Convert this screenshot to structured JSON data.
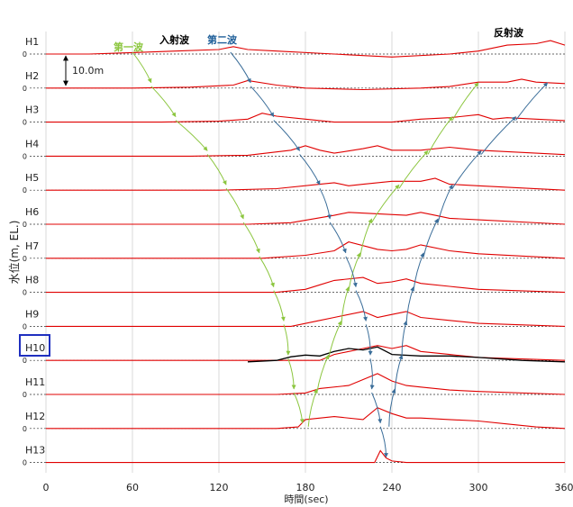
{
  "chart_data": {
    "type": "line",
    "xlabel": "時間(sec)",
    "ylabel": "水位(m, EL.)",
    "x_ticks": [
      0,
      60,
      120,
      180,
      240,
      300,
      360
    ],
    "xlim": [
      0,
      360
    ],
    "scale_label": "10.0m",
    "zero_label": "0",
    "highlighted_station": "H10",
    "grid": "vertical",
    "annotations": {
      "first_wave": "第一波",
      "incident_wave": "入射波",
      "second_wave": "第二波",
      "reflected_wave": "反射波"
    },
    "colors": {
      "series": "#e00000",
      "highlight_series": "#000000",
      "first_wave_arrow": "#8cc63f",
      "second_wave_arrow": "#3a6d99",
      "reflected_arrow": "#3a6d99",
      "highlight_box": "#1f2fbf",
      "second_wave_text": "#1f5f99"
    },
    "series": [
      {
        "name": "H1",
        "x": [
          0,
          30,
          60,
          90,
          120,
          130,
          140,
          160,
          200,
          240,
          280,
          300,
          320,
          340,
          350,
          360
        ],
        "y": [
          0,
          0,
          0.5,
          1,
          1.5,
          2.5,
          1.5,
          1,
          0,
          -1,
          0,
          1,
          3,
          3.5,
          4.5,
          3
        ]
      },
      {
        "name": "H2",
        "x": [
          0,
          60,
          100,
          130,
          140,
          160,
          180,
          220,
          260,
          280,
          300,
          320,
          330,
          340,
          360
        ],
        "y": [
          0,
          0,
          0.3,
          1,
          2.5,
          1,
          0,
          -0.5,
          0,
          0.5,
          2,
          2,
          3,
          2,
          1.5
        ]
      },
      {
        "name": "H3",
        "x": [
          0,
          80,
          120,
          140,
          150,
          160,
          180,
          200,
          240,
          260,
          280,
          300,
          310,
          320,
          360
        ],
        "y": [
          0,
          0,
          0.3,
          1,
          3,
          2,
          1,
          0,
          0,
          1,
          1.5,
          2.5,
          1,
          1.5,
          0.5
        ]
      },
      {
        "name": "H4",
        "x": [
          0,
          100,
          140,
          170,
          180,
          190,
          200,
          220,
          230,
          240,
          260,
          280,
          300,
          360
        ],
        "y": [
          0,
          0,
          0.3,
          2,
          3.5,
          2,
          1,
          2.5,
          3.5,
          2,
          2,
          3,
          2,
          0.5
        ]
      },
      {
        "name": "H5",
        "x": [
          0,
          120,
          160,
          190,
          200,
          210,
          220,
          240,
          260,
          270,
          280,
          300,
          360
        ],
        "y": [
          0,
          0,
          0.5,
          2,
          2.5,
          1.5,
          2,
          3,
          3,
          4,
          2,
          1.5,
          0
        ]
      },
      {
        "name": "H6",
        "x": [
          0,
          140,
          170,
          200,
          210,
          230,
          250,
          260,
          270,
          280,
          300,
          360
        ],
        "y": [
          0,
          0,
          0.5,
          3,
          4,
          3.5,
          3,
          4,
          3,
          2,
          1.5,
          0
        ]
      },
      {
        "name": "H7",
        "x": [
          0,
          150,
          180,
          200,
          210,
          230,
          240,
          250,
          260,
          280,
          300,
          360
        ],
        "y": [
          0,
          0,
          1,
          2.5,
          5.5,
          3,
          2.5,
          3,
          4.5,
          2.5,
          1.5,
          0
        ]
      },
      {
        "name": "H8",
        "x": [
          0,
          160,
          180,
          190,
          200,
          220,
          230,
          240,
          250,
          260,
          280,
          300,
          360
        ],
        "y": [
          0,
          0,
          1,
          2.5,
          4,
          5,
          3,
          3.5,
          4.5,
          3,
          2,
          1,
          0
        ]
      },
      {
        "name": "H9",
        "x": [
          0,
          170,
          190,
          200,
          220,
          230,
          240,
          250,
          260,
          280,
          300,
          360
        ],
        "y": [
          0,
          0,
          2,
          3,
          5,
          3,
          4,
          5,
          3,
          2,
          1,
          0
        ]
      },
      {
        "name": "H10",
        "x": [
          0,
          190,
          200,
          210,
          220,
          230,
          240,
          250,
          260,
          280,
          300,
          360
        ],
        "y": [
          0,
          0,
          2,
          3,
          4,
          5,
          4,
          5,
          3,
          2,
          1,
          0
        ]
      },
      {
        "name": "H10 (measured)",
        "x": [
          140,
          160,
          170,
          180,
          190,
          200,
          210,
          220,
          230,
          240,
          260,
          280,
          300,
          330,
          360
        ],
        "y": [
          -0.5,
          0,
          1.2,
          1.8,
          1.5,
          3,
          4,
          3.5,
          4.5,
          2,
          1.5,
          1.5,
          1,
          0,
          -0.5
        ]
      },
      {
        "name": "H11",
        "x": [
          0,
          160,
          180,
          190,
          210,
          230,
          240,
          250,
          260,
          280,
          300,
          360
        ],
        "y": [
          0,
          0,
          0.5,
          2,
          3,
          7,
          4.5,
          3,
          2.5,
          1.5,
          1,
          0
        ]
      },
      {
        "name": "H12",
        "x": [
          0,
          160,
          175,
          180,
          200,
          220,
          230,
          240,
          250,
          260,
          280,
          300,
          320,
          340,
          360
        ],
        "y": [
          0,
          0,
          0.5,
          3,
          4,
          3,
          7,
          5,
          3.5,
          3.5,
          3,
          2.5,
          1.5,
          0.5,
          0
        ]
      },
      {
        "name": "H13",
        "x": [
          0,
          228,
          232,
          236,
          240,
          250,
          360
        ],
        "y": [
          0,
          0,
          4,
          1.5,
          0.5,
          0,
          0
        ]
      }
    ]
  }
}
